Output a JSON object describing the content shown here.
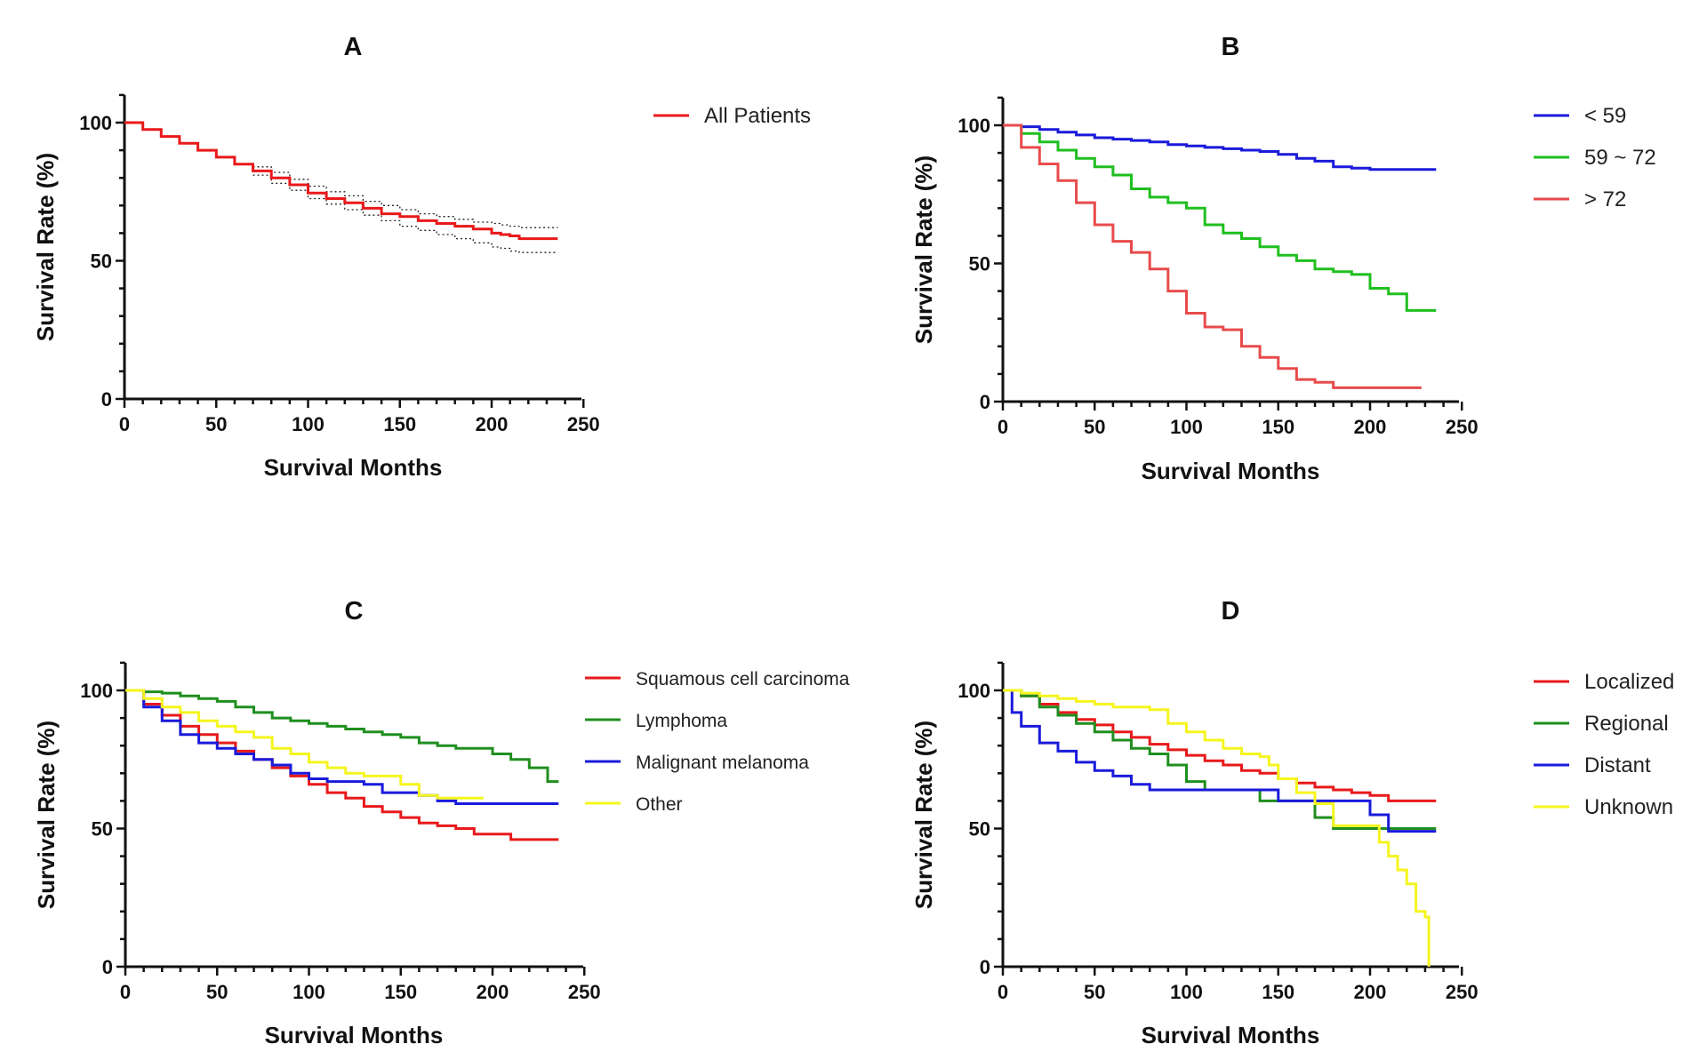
{
  "chart_data": [
    {
      "panel": "A",
      "type": "line",
      "title": "A",
      "xlabel": "Survival Months",
      "ylabel": "Survival Rate (%)",
      "xlim": [
        0,
        250
      ],
      "ylim": [
        0,
        110
      ],
      "xticks": [
        "0",
        "50",
        "100",
        "150",
        "200",
        "250"
      ],
      "yticks": [
        "0",
        "50",
        "100"
      ],
      "legend": "top-right",
      "series": [
        {
          "name": "All Patients",
          "color": "#e8191b",
          "x": [
            0,
            10,
            20,
            30,
            40,
            50,
            60,
            70,
            80,
            90,
            100,
            110,
            120,
            130,
            140,
            150,
            160,
            170,
            180,
            190,
            200,
            205,
            210,
            215,
            236
          ],
          "y": [
            100,
            97.5,
            95,
            92.5,
            90,
            87.5,
            85,
            82.5,
            80,
            77.5,
            74.5,
            72.5,
            71,
            69,
            67,
            66,
            64.5,
            63.5,
            62.5,
            61.5,
            60,
            59.5,
            59,
            58,
            58
          ],
          "ci_lower": [
            null,
            null,
            null,
            null,
            null,
            null,
            null,
            81,
            78,
            75.5,
            72.5,
            70.5,
            68.5,
            66.5,
            64.5,
            62.5,
            61,
            59.5,
            58,
            56.5,
            55,
            54.5,
            53.5,
            53,
            53
          ],
          "ci_upper": [
            null,
            null,
            null,
            null,
            null,
            null,
            null,
            84,
            82,
            79.5,
            77,
            75,
            73.5,
            71.5,
            70,
            68.5,
            67,
            66,
            65,
            64,
            63.5,
            63,
            62.5,
            62,
            62
          ]
        }
      ]
    },
    {
      "panel": "B",
      "type": "line",
      "title": "B",
      "xlabel": "Survival Months",
      "ylabel": "Survival Rate (%)",
      "xlim": [
        0,
        250
      ],
      "ylim": [
        0,
        110
      ],
      "xticks": [
        "0",
        "50",
        "100",
        "150",
        "200",
        "250"
      ],
      "yticks": [
        "0",
        "50",
        "100"
      ],
      "legend": "top-right",
      "series": [
        {
          "name": "< 59",
          "color": "#1a1adb",
          "x": [
            0,
            10,
            20,
            30,
            40,
            50,
            60,
            70,
            80,
            90,
            100,
            110,
            120,
            130,
            140,
            150,
            160,
            170,
            180,
            190,
            200,
            210,
            236
          ],
          "y": [
            100,
            99.5,
            98.5,
            97.5,
            96.5,
            95.5,
            95,
            94.5,
            94,
            93,
            92.5,
            92,
            91.5,
            91,
            90.5,
            89.5,
            88,
            87,
            85,
            84.5,
            84,
            84,
            84
          ]
        },
        {
          "name": "59 ~ 72",
          "color": "#1fbf1f",
          "x": [
            0,
            10,
            20,
            30,
            40,
            50,
            60,
            70,
            80,
            90,
            100,
            110,
            120,
            130,
            140,
            150,
            160,
            170,
            180,
            190,
            200,
            210,
            220,
            236
          ],
          "y": [
            100,
            97,
            94,
            91,
            88,
            85,
            82,
            77,
            74,
            72,
            70,
            64,
            61,
            59,
            56,
            53,
            51,
            48,
            47,
            46,
            41,
            39,
            33,
            33
          ]
        },
        {
          "name": "> 72",
          "color": "#e84b4b",
          "x": [
            0,
            10,
            20,
            30,
            40,
            50,
            60,
            70,
            80,
            90,
            100,
            110,
            120,
            130,
            140,
            150,
            160,
            170,
            180,
            190,
            200,
            210,
            220,
            228
          ],
          "y": [
            100,
            92,
            86,
            80,
            72,
            64,
            58,
            54,
            48,
            40,
            32,
            27,
            26,
            20,
            16,
            12,
            8,
            7,
            5,
            5,
            5,
            5,
            5,
            5
          ]
        }
      ]
    },
    {
      "panel": "C",
      "type": "line",
      "title": "C",
      "xlabel": "Survival Months",
      "ylabel": "Survival Rate (%)",
      "xlim": [
        0,
        250
      ],
      "ylim": [
        0,
        110
      ],
      "xticks": [
        "0",
        "50",
        "100",
        "150",
        "200",
        "250"
      ],
      "yticks": [
        "0",
        "50",
        "100"
      ],
      "legend": "top-right",
      "series": [
        {
          "name": "Squamous cell carcinoma",
          "color": "#e8191b",
          "x": [
            0,
            10,
            20,
            30,
            40,
            50,
            60,
            70,
            80,
            90,
            100,
            110,
            120,
            130,
            140,
            150,
            160,
            170,
            180,
            190,
            200,
            210,
            236
          ],
          "y": [
            100,
            95,
            91,
            87,
            84,
            81,
            78,
            75,
            72,
            69,
            66,
            63,
            61,
            58,
            56,
            54,
            52,
            51,
            50,
            48,
            48,
            46,
            46
          ]
        },
        {
          "name": "Lymphoma",
          "color": "#1f8f1f",
          "x": [
            0,
            10,
            20,
            30,
            40,
            50,
            60,
            70,
            80,
            90,
            100,
            110,
            120,
            130,
            140,
            150,
            160,
            170,
            180,
            190,
            200,
            210,
            220,
            230,
            236
          ],
          "y": [
            100,
            99.5,
            99,
            98,
            97,
            96,
            94,
            92,
            90,
            89,
            88,
            87,
            86,
            85,
            84,
            83,
            81,
            80,
            79,
            79,
            77,
            75,
            72,
            67,
            67
          ]
        },
        {
          "name": "Malignant melanoma",
          "color": "#1a1adb",
          "x": [
            0,
            10,
            20,
            30,
            40,
            50,
            60,
            70,
            80,
            90,
            100,
            110,
            120,
            130,
            140,
            150,
            160,
            170,
            180,
            190,
            236
          ],
          "y": [
            100,
            94,
            89,
            84,
            81,
            79,
            77,
            75,
            73,
            70,
            68,
            67,
            67,
            66,
            63,
            63,
            62,
            60,
            59,
            59,
            59
          ]
        },
        {
          "name": "Other",
          "color": "#f5f51e",
          "x": [
            0,
            10,
            20,
            30,
            40,
            50,
            60,
            70,
            80,
            90,
            100,
            110,
            120,
            130,
            140,
            150,
            160,
            170,
            180,
            195
          ],
          "y": [
            100,
            97,
            94,
            92,
            89,
            87,
            85,
            83,
            79,
            77,
            74,
            72,
            70,
            69,
            69,
            66,
            62,
            61,
            61,
            61
          ]
        }
      ]
    },
    {
      "panel": "D",
      "type": "line",
      "title": "D",
      "xlabel": "Survival Months",
      "ylabel": "Survival Rate (%)",
      "xlim": [
        0,
        250
      ],
      "ylim": [
        0,
        110
      ],
      "xticks": [
        "0",
        "50",
        "100",
        "150",
        "200",
        "250"
      ],
      "yticks": [
        "0",
        "50",
        "100"
      ],
      "legend": "top-right",
      "series": [
        {
          "name": "Localized",
          "color": "#e8191b",
          "x": [
            0,
            10,
            20,
            30,
            40,
            50,
            60,
            70,
            80,
            90,
            100,
            110,
            120,
            130,
            140,
            150,
            160,
            170,
            180,
            190,
            200,
            210,
            236
          ],
          "y": [
            100,
            98,
            95,
            92,
            89.5,
            87.5,
            85,
            83,
            80.5,
            78.5,
            76.5,
            74.5,
            73,
            71,
            70,
            68,
            66.5,
            65,
            64,
            63,
            62,
            60,
            60
          ]
        },
        {
          "name": "Regional",
          "color": "#1f8f1f",
          "x": [
            0,
            10,
            20,
            30,
            40,
            50,
            60,
            70,
            80,
            90,
            100,
            110,
            120,
            130,
            140,
            150,
            160,
            170,
            180,
            190,
            200,
            236
          ],
          "y": [
            100,
            98,
            94,
            91,
            88,
            85,
            82,
            79,
            77,
            73,
            67,
            64,
            64,
            64,
            60,
            60,
            60,
            54,
            50,
            50,
            50,
            50
          ]
        },
        {
          "name": "Distant",
          "color": "#1a1adb",
          "x": [
            0,
            5,
            10,
            20,
            30,
            40,
            50,
            60,
            70,
            80,
            90,
            100,
            110,
            120,
            130,
            140,
            150,
            160,
            170,
            180,
            190,
            200,
            210,
            236
          ],
          "y": [
            100,
            92,
            87,
            81,
            78,
            74,
            71,
            69,
            66,
            64,
            64,
            64,
            64,
            64,
            64,
            64,
            60,
            60,
            60,
            60,
            60,
            55,
            49,
            49
          ]
        },
        {
          "name": "Unknown",
          "color": "#f5f51e",
          "x": [
            0,
            10,
            20,
            30,
            40,
            50,
            60,
            70,
            80,
            90,
            100,
            110,
            120,
            130,
            140,
            145,
            150,
            160,
            170,
            180,
            190,
            200,
            205,
            210,
            215,
            220,
            225,
            230,
            232
          ],
          "y": [
            100,
            99,
            98,
            97,
            96,
            95,
            94,
            94,
            93,
            88,
            85,
            82,
            79,
            77,
            76,
            73,
            68,
            63,
            59,
            51,
            51,
            51,
            45,
            40,
            35,
            30,
            20,
            18,
            0
          ]
        }
      ]
    }
  ]
}
